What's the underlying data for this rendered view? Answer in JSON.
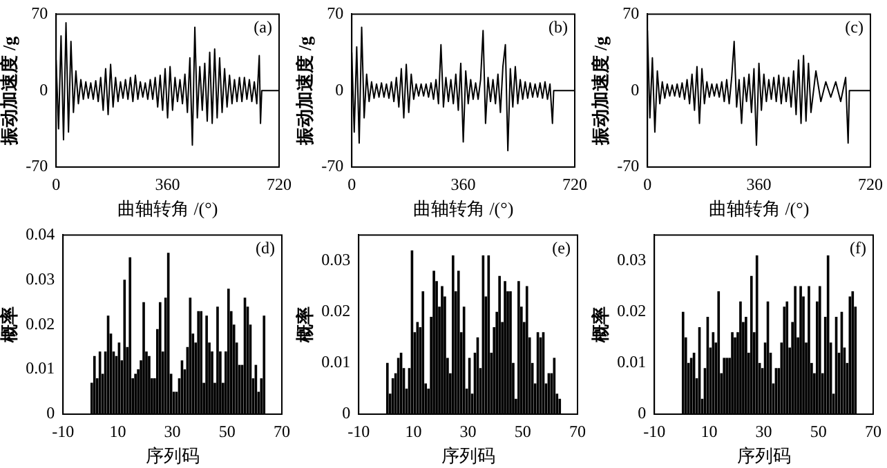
{
  "chart_data": [
    {
      "type": "line",
      "xlabel": "曲轴转角 /(°)",
      "ylabel": "振动加速度 /g",
      "annotations": [
        "(a)"
      ],
      "color": "#000000",
      "xlim": [
        0,
        720
      ],
      "xticks": [
        0,
        360,
        720
      ],
      "ylim": [
        -70,
        70
      ],
      "yticks": [
        -70,
        0,
        70
      ],
      "x": [
        0,
        8,
        16,
        24,
        32,
        40,
        48,
        56,
        64,
        72,
        80,
        88,
        96,
        104,
        112,
        120,
        128,
        136,
        144,
        152,
        160,
        168,
        176,
        184,
        192,
        200,
        208,
        216,
        224,
        232,
        240,
        248,
        256,
        264,
        272,
        280,
        288,
        296,
        304,
        312,
        320,
        328,
        336,
        344,
        352,
        360,
        368,
        376,
        384,
        392,
        400,
        408,
        416,
        424,
        432,
        440,
        448,
        456,
        464,
        472,
        480,
        488,
        496,
        504,
        512,
        520,
        528,
        536,
        544,
        552,
        560,
        568,
        576,
        584,
        592,
        600,
        608,
        616,
        624,
        632,
        640,
        648,
        656,
        660,
        664,
        720
      ],
      "values": [
        28,
        -35,
        50,
        -45,
        62,
        -38,
        45,
        -20,
        18,
        -12,
        10,
        -8,
        8,
        -7,
        7,
        -8,
        9,
        -10,
        12,
        -18,
        20,
        -22,
        24,
        -15,
        12,
        -10,
        8,
        -7,
        10,
        -8,
        12,
        -10,
        14,
        -8,
        8,
        -6,
        7,
        -8,
        10,
        -8,
        12,
        -15,
        14,
        -18,
        20,
        -25,
        22,
        -18,
        12,
        -10,
        10,
        -12,
        15,
        -20,
        30,
        -50,
        58,
        -25,
        22,
        -18,
        25,
        -28,
        35,
        -30,
        38,
        -25,
        30,
        -20,
        20,
        -15,
        14,
        -12,
        10,
        -10,
        12,
        -10,
        12,
        -8,
        10,
        -10,
        8,
        -12,
        32,
        -30,
        0,
        0
      ]
    },
    {
      "type": "line",
      "xlabel": "曲轴转角 /(°)",
      "ylabel": "振动加速度 /g",
      "annotations": [
        "(b)"
      ],
      "color": "#000000",
      "xlim": [
        0,
        720
      ],
      "xticks": [
        0,
        360,
        720
      ],
      "ylim": [
        -70,
        70
      ],
      "yticks": [
        -70,
        0,
        70
      ],
      "x": [
        0,
        8,
        16,
        24,
        32,
        40,
        48,
        56,
        64,
        72,
        80,
        88,
        96,
        104,
        112,
        120,
        128,
        136,
        144,
        152,
        160,
        168,
        176,
        184,
        192,
        200,
        208,
        216,
        224,
        232,
        240,
        248,
        256,
        264,
        272,
        280,
        288,
        296,
        304,
        312,
        320,
        328,
        336,
        344,
        352,
        360,
        368,
        376,
        384,
        392,
        400,
        408,
        416,
        424,
        432,
        440,
        448,
        456,
        464,
        472,
        480,
        488,
        496,
        504,
        512,
        520,
        528,
        536,
        544,
        552,
        560,
        568,
        576,
        584,
        592,
        600,
        608,
        616,
        624,
        632,
        640,
        648,
        652,
        720
      ],
      "values": [
        35,
        -38,
        40,
        -48,
        58,
        -25,
        15,
        -10,
        8,
        -7,
        6,
        -6,
        7,
        -6,
        6,
        -7,
        8,
        -10,
        12,
        -15,
        20,
        -25,
        24,
        -20,
        15,
        -8,
        6,
        -5,
        6,
        -5,
        6,
        -6,
        7,
        -8,
        10,
        -12,
        42,
        -15,
        12,
        -10,
        10,
        -12,
        15,
        -18,
        25,
        -47,
        18,
        -12,
        10,
        -8,
        7,
        -8,
        10,
        55,
        -30,
        12,
        -10,
        10,
        -12,
        15,
        -20,
        22,
        42,
        -55,
        20,
        -15,
        22,
        -12,
        10,
        -8,
        8,
        -7,
        7,
        -6,
        6,
        -6,
        7,
        -7,
        8,
        -8,
        6,
        -30,
        0,
        0
      ]
    },
    {
      "type": "line",
      "xlabel": "曲轴转角 /(°)",
      "ylabel": "振动加速度 /g",
      "annotations": [
        "(c)"
      ],
      "color": "#000000",
      "xlim": [
        0,
        720
      ],
      "xticks": [
        0,
        360,
        720
      ],
      "ylim": [
        -70,
        70
      ],
      "yticks": [
        -70,
        0,
        70
      ],
      "x": [
        0,
        8,
        16,
        24,
        32,
        40,
        48,
        56,
        64,
        72,
        80,
        88,
        96,
        104,
        112,
        120,
        128,
        136,
        144,
        152,
        160,
        168,
        176,
        184,
        192,
        200,
        208,
        216,
        224,
        232,
        240,
        248,
        256,
        264,
        272,
        280,
        288,
        296,
        304,
        312,
        320,
        328,
        336,
        344,
        352,
        360,
        368,
        376,
        384,
        392,
        400,
        408,
        416,
        424,
        432,
        440,
        448,
        456,
        464,
        472,
        480,
        488,
        496,
        504,
        512,
        520,
        528,
        544,
        560,
        576,
        592,
        608,
        624,
        640,
        648,
        652,
        720
      ],
      "values": [
        55,
        -25,
        30,
        -38,
        18,
        -12,
        8,
        -7,
        6,
        -5,
        5,
        -5,
        6,
        -6,
        7,
        -8,
        10,
        -12,
        15,
        -18,
        22,
        -30,
        20,
        -12,
        8,
        -6,
        6,
        -5,
        6,
        -6,
        8,
        -10,
        10,
        -12,
        12,
        45,
        -15,
        10,
        -30,
        12,
        -10,
        15,
        -20,
        20,
        -50,
        25,
        -18,
        15,
        -10,
        10,
        -8,
        12,
        -10,
        14,
        -12,
        12,
        -10,
        12,
        -15,
        18,
        -22,
        28,
        -30,
        32,
        -28,
        25,
        -20,
        18,
        -10,
        8,
        -6,
        8,
        -10,
        12,
        -48,
        0,
        0
      ]
    },
    {
      "type": "histogram",
      "xlabel": "序列码",
      "ylabel": "概率",
      "annotations": [
        "(d)"
      ],
      "color": "#000000",
      "xlim": [
        -10,
        70
      ],
      "xticks": [
        -10,
        10,
        30,
        50,
        70
      ],
      "ylim": [
        0,
        0.04
      ],
      "yticks": [
        0,
        0.01,
        0.02,
        0.03,
        0.04
      ],
      "bins": [
        0,
        1,
        2,
        3,
        4,
        5,
        6,
        7,
        8,
        9,
        10,
        11,
        12,
        13,
        14,
        15,
        16,
        17,
        18,
        19,
        20,
        21,
        22,
        23,
        24,
        25,
        26,
        27,
        28,
        29,
        30,
        31,
        32,
        33,
        34,
        35,
        36,
        37,
        38,
        39,
        40,
        41,
        42,
        43,
        44,
        45,
        46,
        47,
        48,
        49,
        50,
        51,
        52,
        53,
        54,
        55,
        56,
        57,
        58,
        59,
        60,
        61,
        62,
        63,
        64
      ],
      "values": [
        0.007,
        0.013,
        0.008,
        0.014,
        0.009,
        0.014,
        0.022,
        0.018,
        0.014,
        0.013,
        0.016,
        0.012,
        0.03,
        0.015,
        0.035,
        0.008,
        0.009,
        0.01,
        0.012,
        0.025,
        0.014,
        0.013,
        0.008,
        0.008,
        0.019,
        0.025,
        0.014,
        0.026,
        0.036,
        0.009,
        0.005,
        0.005,
        0.008,
        0.012,
        0.01,
        0.015,
        0.026,
        0.018,
        0.016,
        0.023,
        0.023,
        0.007,
        0.022,
        0.016,
        0.014,
        0.007,
        0.024,
        0.014,
        0.007,
        0.014,
        0.028,
        0.023,
        0.02,
        0.016,
        0.011,
        0.011,
        0.026,
        0.024,
        0.02,
        0.008,
        0.011,
        0.005,
        0.008,
        0.022
      ]
    },
    {
      "type": "histogram",
      "xlabel": "序列码",
      "ylabel": "概率",
      "annotations": [
        "(e)"
      ],
      "color": "#000000",
      "xlim": [
        -10,
        70
      ],
      "xticks": [
        -10,
        10,
        30,
        50,
        70
      ],
      "ylim": [
        0,
        0.035
      ],
      "yticks": [
        0,
        0.01,
        0.02,
        0.03
      ],
      "bins": [
        0,
        1,
        2,
        3,
        4,
        5,
        6,
        7,
        8,
        9,
        10,
        11,
        12,
        13,
        14,
        15,
        16,
        17,
        18,
        19,
        20,
        21,
        22,
        23,
        24,
        25,
        26,
        27,
        28,
        29,
        30,
        31,
        32,
        33,
        34,
        35,
        36,
        37,
        38,
        39,
        40,
        41,
        42,
        43,
        44,
        45,
        46,
        47,
        48,
        49,
        50,
        51,
        52,
        53,
        54,
        55,
        56,
        57,
        58,
        59,
        60,
        61,
        62,
        63,
        64
      ],
      "values": [
        0.01,
        0.004,
        0.007,
        0.008,
        0.011,
        0.012,
        0.009,
        0.005,
        0.009,
        0.032,
        0.016,
        0.018,
        0.017,
        0.024,
        0.006,
        0.005,
        0.019,
        0.028,
        0.026,
        0.021,
        0.025,
        0.023,
        0.011,
        0.008,
        0.031,
        0.024,
        0.028,
        0.016,
        0.021,
        0.005,
        0.011,
        0.004,
        0.012,
        0.015,
        0.009,
        0.031,
        0.023,
        0.031,
        0.012,
        0.017,
        0.02,
        0.027,
        0.018,
        0.026,
        0.024,
        0.024,
        0.01,
        0.003,
        0.026,
        0.021,
        0.018,
        0.025,
        0.015,
        0.01,
        0.006,
        0.016,
        0.015,
        0.016,
        0.006,
        0.008,
        0.008,
        0.011,
        0.004,
        0.003
      ]
    },
    {
      "type": "histogram",
      "xlabel": "序列码",
      "ylabel": "概率",
      "annotations": [
        "(f)"
      ],
      "color": "#000000",
      "xlim": [
        -10,
        70
      ],
      "xticks": [
        -10,
        10,
        30,
        50,
        70
      ],
      "ylim": [
        0,
        0.035
      ],
      "yticks": [
        0,
        0.01,
        0.02,
        0.03
      ],
      "bins": [
        0,
        1,
        2,
        3,
        4,
        5,
        6,
        7,
        8,
        9,
        10,
        11,
        12,
        13,
        14,
        15,
        16,
        17,
        18,
        19,
        20,
        21,
        22,
        23,
        24,
        25,
        26,
        27,
        28,
        29,
        30,
        31,
        32,
        33,
        34,
        35,
        36,
        37,
        38,
        39,
        40,
        41,
        42,
        43,
        44,
        45,
        46,
        47,
        48,
        49,
        50,
        51,
        52,
        53,
        54,
        55,
        56,
        57,
        58,
        59,
        60,
        61,
        62,
        63,
        64
      ],
      "values": [
        0.02,
        0.015,
        0.01,
        0.011,
        0.012,
        0.007,
        0.017,
        0.003,
        0.009,
        0.019,
        0.013,
        0.016,
        0.014,
        0.024,
        0.008,
        0.011,
        0.011,
        0.011,
        0.016,
        0.015,
        0.016,
        0.022,
        0.018,
        0.019,
        0.012,
        0.027,
        0.016,
        0.031,
        0.01,
        0.009,
        0.014,
        0.022,
        0.012,
        0.006,
        0.009,
        0.009,
        0.014,
        0.021,
        0.022,
        0.013,
        0.018,
        0.025,
        0.015,
        0.025,
        0.023,
        0.014,
        0.025,
        0.01,
        0.008,
        0.022,
        0.025,
        0.008,
        0.019,
        0.031,
        0.014,
        0.004,
        0.019,
        0.012,
        0.02,
        0.013,
        0.01,
        0.023,
        0.024,
        0.021
      ]
    }
  ]
}
